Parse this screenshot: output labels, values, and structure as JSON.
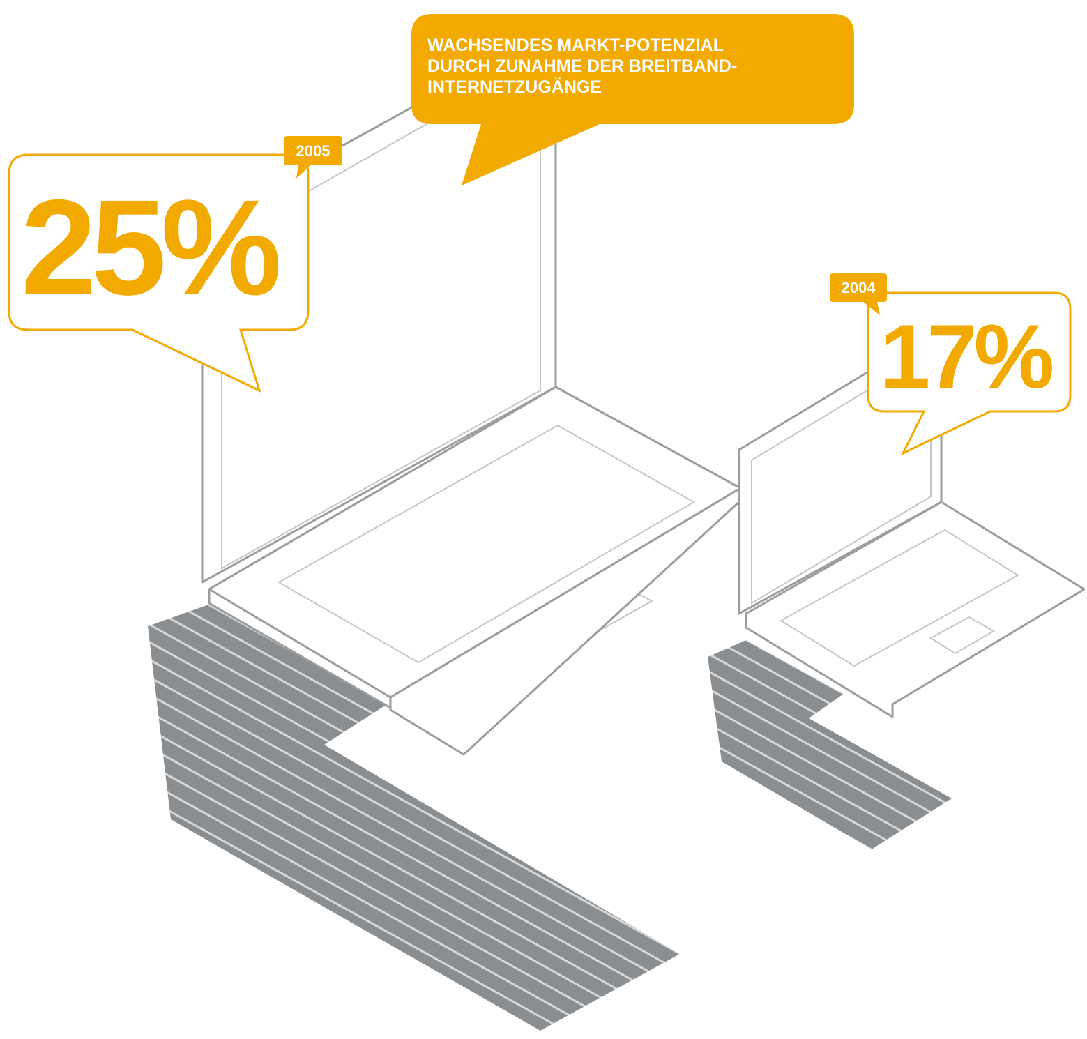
{
  "callout": {
    "lines": [
      "WACHSENDES MARKT-POTENZIAL",
      "DURCH ZUNAHME DER BREITBAND-",
      "INTERNETZUGÄNGE"
    ]
  },
  "items": [
    {
      "year": "2005",
      "value": "25%"
    },
    {
      "year": "2004",
      "value": "17%"
    }
  ]
}
